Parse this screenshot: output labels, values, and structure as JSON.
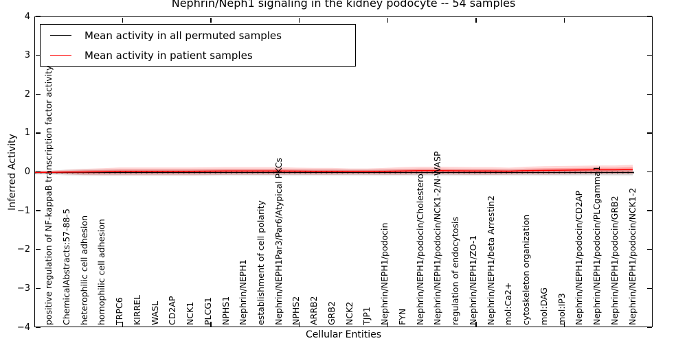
{
  "title": "Nephrin/Neph1 signaling in the kidney podocyte -- 54 samples",
  "legend": {
    "entries": [
      {
        "label": "Mean activity in all permuted samples",
        "color": "#000000"
      },
      {
        "label": "Mean activity in patient samples",
        "color": "#ff0000"
      }
    ]
  },
  "chart_data": {
    "type": "line",
    "title": "Nephrin/Neph1 signaling in the kidney podocyte -- 54 samples",
    "xlabel": "Cellular Entities",
    "ylabel": "Inferred Activity",
    "ylim": [
      -4,
      4
    ],
    "yticks": [
      "4",
      "3",
      "2",
      "1",
      "0",
      "−1",
      "−2",
      "−3",
      "−4"
    ],
    "grid": false,
    "legend_position": "upper left",
    "zero_line_style": "dotted",
    "categories": [
      "positive regulation of NF-kappaB transcription factor activity",
      "ChemicalAbstracts:57-88-5",
      "heterophilic cell adhesion",
      "homophilic cell adhesion",
      "TRPC6",
      "KIRREL",
      "WASL",
      "CD2AP",
      "NCK1",
      "PLCG1",
      "NPHS1",
      "Nephrin/NEPH1",
      "establishment of cell polarity",
      "Nephrin/NEPH1Par3/Par6/Atypical PKCs",
      "NPHS2",
      "ARRB2",
      "GRB2",
      "NCK2",
      "TJP1",
      "Nephrin/NEPH1/podocin",
      "FYN",
      "Nephrin/NEPH1/podocin/Cholesterol",
      "Nephrin/NEPH1/podocin/NCK1-2/N-WASP",
      "regulation of endocytosis",
      "Nephrin/NEPH1/ZO-1",
      "Nephrin/NEPH1/beta Arrestin2",
      "mol:Ca2+",
      "cytoskeleton organization",
      "mol:DAG",
      "mol:IP3",
      "Nephrin/NEPH1/podocin/CD2AP",
      "Nephrin/NEPH1/podocin/PLCgamma1",
      "Nephrin/NEPH1/podocin/GRB2",
      "Nephrin/NEPH1/podocin/NCK1-2"
    ],
    "series": [
      {
        "name": "Mean activity in all permuted samples",
        "color": "#000000",
        "band_color": "#000000",
        "band_opacity": 0.1,
        "values": [
          0,
          0,
          0,
          0,
          0,
          0,
          0,
          0,
          0,
          0,
          0,
          0,
          0,
          0,
          0,
          0,
          0,
          0,
          0,
          0,
          0,
          0,
          0,
          0,
          0,
          0,
          0,
          0,
          0,
          0,
          0,
          0,
          0,
          0
        ],
        "band": [
          0.03,
          0.05,
          0.06,
          0.06,
          0.06,
          0.06,
          0.06,
          0.06,
          0.06,
          0.06,
          0.06,
          0.06,
          0.06,
          0.06,
          0.06,
          0.06,
          0.06,
          0.06,
          0.06,
          0.06,
          0.06,
          0.06,
          0.06,
          0.06,
          0.06,
          0.06,
          0.06,
          0.06,
          0.06,
          0.06,
          0.06,
          0.06,
          0.06,
          0.06
        ]
      },
      {
        "name": "Mean activity in patient samples",
        "color": "#ff0000",
        "band_color": "#ff0000",
        "band_opacity": 0.16,
        "values": [
          0.005,
          0.01,
          0.015,
          0.02,
          0.03,
          0.03,
          0.03,
          0.03,
          0.03,
          0.035,
          0.04,
          0.04,
          0.04,
          0.04,
          0.035,
          0.03,
          0.03,
          0.025,
          0.025,
          0.03,
          0.04,
          0.05,
          0.05,
          0.045,
          0.04,
          0.04,
          0.035,
          0.05,
          0.055,
          0.06,
          0.065,
          0.07,
          0.07,
          0.08
        ],
        "band": [
          0.04,
          0.06,
          0.08,
          0.09,
          0.1,
          0.1,
          0.1,
          0.1,
          0.1,
          0.1,
          0.1,
          0.1,
          0.1,
          0.1,
          0.09,
          0.09,
          0.09,
          0.08,
          0.08,
          0.09,
          0.1,
          0.1,
          0.1,
          0.1,
          0.1,
          0.1,
          0.09,
          0.1,
          0.11,
          0.11,
          0.11,
          0.11,
          0.11,
          0.12
        ]
      }
    ]
  }
}
